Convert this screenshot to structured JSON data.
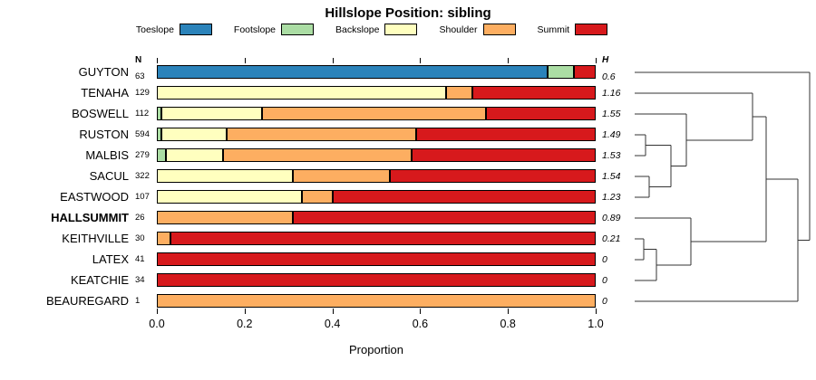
{
  "title": "Hillslope Position: sibling",
  "legend": {
    "items": [
      {
        "label": "Toeslope",
        "color": "#2B83BA"
      },
      {
        "label": "Footslope",
        "color": "#ABDDA4"
      },
      {
        "label": "Backslope",
        "color": "#FFFFBF"
      },
      {
        "label": "Shoulder",
        "color": "#FDAE61"
      },
      {
        "label": "Summit",
        "color": "#D7191C"
      }
    ]
  },
  "chart_data": {
    "type": "bar",
    "stacked": true,
    "orientation": "horizontal",
    "title": "Hillslope Position: sibling",
    "xlabel": "Proportion",
    "xlim": [
      0,
      1
    ],
    "xticks": [
      "0.0",
      "0.2",
      "0.4",
      "0.6",
      "0.8",
      "1.0"
    ],
    "grid": false,
    "legend_position": "top",
    "categories": [
      "Toeslope",
      "Footslope",
      "Backslope",
      "Shoulder",
      "Summit"
    ],
    "colors": {
      "Toeslope": "#2B83BA",
      "Footslope": "#ABDDA4",
      "Backslope": "#FFFFBF",
      "Shoulder": "#FDAE61",
      "Summit": "#D7191C"
    },
    "col_headers": {
      "n": "N",
      "h": "H"
    },
    "rows": [
      {
        "name": "GUYTON",
        "n": "63",
        "h": "0.6",
        "values": [
          0.89,
          0.06,
          0,
          0,
          0.05
        ]
      },
      {
        "name": "TENAHA",
        "n": "129",
        "h": "1.16",
        "values": [
          0,
          0,
          0.66,
          0.06,
          0.28
        ]
      },
      {
        "name": "BOSWELL",
        "n": "112",
        "h": "1.55",
        "values": [
          0,
          0.01,
          0.23,
          0.51,
          0.25
        ]
      },
      {
        "name": "RUSTON",
        "n": "594",
        "h": "1.49",
        "values": [
          0,
          0.01,
          0.15,
          0.43,
          0.41
        ]
      },
      {
        "name": "MALBIS",
        "n": "279",
        "h": "1.53",
        "values": [
          0,
          0.02,
          0.13,
          0.43,
          0.42
        ]
      },
      {
        "name": "SACUL",
        "n": "322",
        "h": "1.54",
        "values": [
          0,
          0,
          0.31,
          0.22,
          0.47
        ]
      },
      {
        "name": "EASTWOOD",
        "n": "107",
        "h": "1.23",
        "values": [
          0,
          0,
          0.33,
          0.07,
          0.6
        ]
      },
      {
        "name": "HALLSUMMIT",
        "n": "26",
        "h": "0.89",
        "bold": true,
        "values": [
          0,
          0,
          0,
          0.31,
          0.69
        ]
      },
      {
        "name": "KEITHVILLE",
        "n": "30",
        "h": "0.21",
        "values": [
          0,
          0,
          0,
          0.03,
          0.97
        ]
      },
      {
        "name": "LATEX",
        "n": "41",
        "h": "0",
        "values": [
          0,
          0,
          0,
          0,
          1
        ]
      },
      {
        "name": "KEATCHIE",
        "n": "34",
        "h": "0",
        "values": [
          0,
          0,
          0,
          0,
          1
        ]
      },
      {
        "name": "BEAUREGARD",
        "n": "1",
        "h": "0",
        "values": [
          0,
          0,
          0,
          1,
          0
        ]
      }
    ]
  },
  "dendrogram": {
    "stroke": "#333333",
    "segments": [
      [
        0,
        20,
        193,
        20
      ],
      [
        0,
        43,
        130,
        43
      ],
      [
        0,
        66,
        57,
        66
      ],
      [
        0,
        89,
        12,
        89
      ],
      [
        0,
        112,
        12,
        112
      ],
      [
        12,
        89,
        12,
        112
      ],
      [
        0,
        135,
        16,
        135
      ],
      [
        0,
        158,
        16,
        158
      ],
      [
        16,
        135,
        16,
        158
      ],
      [
        12,
        100.5,
        40,
        100.5
      ],
      [
        16,
        146.5,
        40,
        146.5
      ],
      [
        40,
        100.5,
        40,
        146.5
      ],
      [
        40,
        123.5,
        57,
        123.5
      ],
      [
        57,
        66,
        57,
        123.5
      ],
      [
        57,
        94.75,
        130,
        94.75
      ],
      [
        130,
        43,
        130,
        94.75
      ],
      [
        0,
        181,
        62,
        181
      ],
      [
        0,
        204,
        10,
        204
      ],
      [
        0,
        227,
        10,
        227
      ],
      [
        10,
        204,
        10,
        227
      ],
      [
        10,
        215.5,
        24,
        215.5
      ],
      [
        0,
        250,
        24,
        250
      ],
      [
        24,
        215.5,
        24,
        250
      ],
      [
        24,
        232.75,
        62,
        232.75
      ],
      [
        62,
        181,
        62,
        232.75
      ],
      [
        130,
        68.9,
        145,
        68.9
      ],
      [
        62,
        206.9,
        145,
        206.9
      ],
      [
        145,
        68.9,
        145,
        206.9
      ],
      [
        145,
        137.9,
        180,
        137.9
      ],
      [
        0,
        273,
        180,
        273
      ],
      [
        180,
        137.9,
        180,
        273
      ],
      [
        180,
        205.4,
        193,
        205.4
      ],
      [
        193,
        20,
        193,
        205.4
      ]
    ]
  }
}
